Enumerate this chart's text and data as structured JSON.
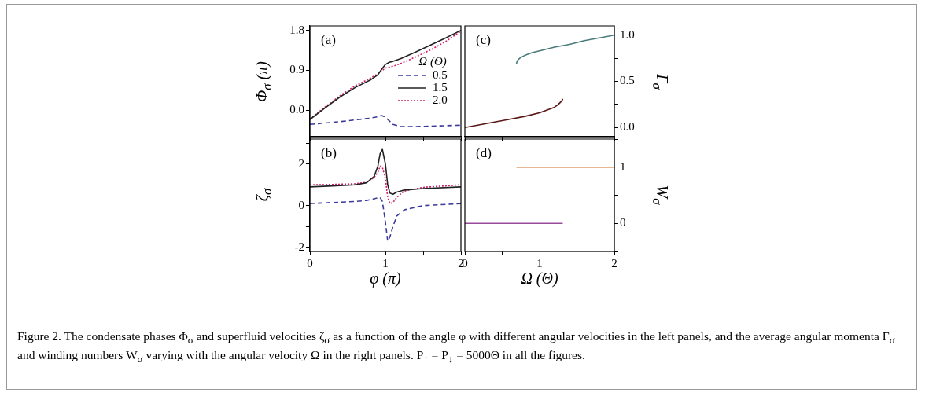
{
  "chart_data": [
    {
      "type": "line",
      "ylabel": "Φ$_{σ}$ (π)",
      "legend_title": "Ω (Θ)",
      "legend": "right",
      "tick_labels": "y",
      "annotations": [
        "(a)",
        "Figure 2. The condensate phases Φ$_{σ}$ and superfluid velocities ζ$_{σ}$ as a function of the angle φ with different angular velocities in the left panels, and the average angular momenta Γ$_{σ}$ and winding numbers W$_{σ}$ varying with the angular velocity Ω in the right panels. P$_{↑}$ = P$_{↓}$ = 5000Θ in all the figures."
      ],
      "xlim": [
        0,
        2
      ],
      "xticks": [
        {
          "value": 0,
          "label": null
        },
        {
          "value": 0.5,
          "label": null
        },
        {
          "value": 1,
          "label": null
        },
        {
          "value": 1.5,
          "label": null
        },
        {
          "value": 2,
          "label": null
        }
      ],
      "ylim": [
        -0.6,
        1.9
      ],
      "yticks": [
        {
          "value": 0,
          "label": "0.0"
        },
        {
          "value": 0.9,
          "label": "0.9"
        },
        {
          "value": 1.8,
          "label": "1.8"
        }
      ],
      "series": [
        {
          "name": "0.5",
          "color": "#3a3a9a",
          "line_style": "dashed",
          "x": [
            0,
            0.2,
            0.4,
            0.6,
            0.8,
            0.9,
            0.95,
            1.0,
            1.05,
            1.1,
            1.2,
            1.4,
            1.6,
            1.8,
            2.0
          ],
          "values": [
            -0.32,
            -0.29,
            -0.26,
            -0.22,
            -0.18,
            -0.15,
            -0.12,
            -0.16,
            -0.24,
            -0.32,
            -0.37,
            -0.37,
            -0.36,
            -0.35,
            -0.34
          ]
        },
        {
          "name": "1.5",
          "color": "#222222",
          "line_style": "solid",
          "x": [
            0,
            0.2,
            0.4,
            0.6,
            0.8,
            0.9,
            0.95,
            1.0,
            1.05,
            1.1,
            1.2,
            1.4,
            1.6,
            1.8,
            2.0
          ],
          "values": [
            -0.21,
            0.05,
            0.3,
            0.51,
            0.68,
            0.8,
            0.92,
            1.03,
            1.08,
            1.1,
            1.16,
            1.31,
            1.47,
            1.63,
            1.8
          ]
        },
        {
          "name": "2.0",
          "color": "#d0206a",
          "line_style": "dotted",
          "x": [
            0,
            0.2,
            0.4,
            0.6,
            0.8,
            0.9,
            0.95,
            1.0,
            1.05,
            1.1,
            1.2,
            1.4,
            1.6,
            1.8,
            2.0
          ],
          "values": [
            -0.2,
            0.07,
            0.33,
            0.55,
            0.72,
            0.82,
            0.88,
            0.95,
            0.97,
            0.99,
            1.05,
            1.2,
            1.36,
            1.55,
            1.78
          ]
        }
      ]
    },
    {
      "type": "line",
      "xlabel": "φ (π)",
      "ylabel": "ζ$_{σ}$",
      "annotations": [
        "(b)"
      ],
      "xlim": [
        0,
        2
      ],
      "xticks": [
        {
          "value": 0,
          "label": "0"
        },
        {
          "value": 0.5,
          "label": null
        },
        {
          "value": 1,
          "label": "1"
        },
        {
          "value": 1.5,
          "label": null
        },
        {
          "value": 2,
          "label": "2"
        }
      ],
      "ylim": [
        -2.2,
        3.2
      ],
      "yticks": [
        {
          "value": -2,
          "label": "-2"
        },
        {
          "value": -1,
          "label": null
        },
        {
          "value": 0,
          "label": "0"
        },
        {
          "value": 1,
          "label": null
        },
        {
          "value": 2,
          "label": "2"
        },
        {
          "value": 3,
          "label": null
        }
      ],
      "series": [
        {
          "color": "#3a3a9a",
          "line_style": "dashed",
          "x": [
            0,
            0.3,
            0.6,
            0.75,
            0.85,
            0.9,
            0.93,
            0.96,
            1.0,
            1.03,
            1.06,
            1.1,
            1.15,
            1.25,
            1.5,
            2.0
          ],
          "values": [
            0.1,
            0.15,
            0.2,
            0.25,
            0.33,
            0.38,
            0.4,
            0.2,
            -0.8,
            -1.7,
            -1.5,
            -1.0,
            -0.5,
            -0.2,
            0.0,
            0.1
          ]
        },
        {
          "color": "#222222",
          "line_style": "solid",
          "x": [
            0,
            0.3,
            0.6,
            0.75,
            0.85,
            0.9,
            0.93,
            0.96,
            1.0,
            1.03,
            1.06,
            1.1,
            1.15,
            1.25,
            1.5,
            2.0
          ],
          "values": [
            0.9,
            0.95,
            1.0,
            1.1,
            1.4,
            1.9,
            2.5,
            2.7,
            2.0,
            1.0,
            0.6,
            0.55,
            0.65,
            0.75,
            0.82,
            0.9
          ]
        },
        {
          "color": "#d0206a",
          "line_style": "dotted",
          "x": [
            0,
            0.3,
            0.6,
            0.75,
            0.85,
            0.9,
            0.93,
            0.96,
            1.0,
            1.03,
            1.06,
            1.1,
            1.15,
            1.25,
            1.5,
            2.0
          ],
          "values": [
            1.0,
            1.02,
            1.05,
            1.12,
            1.35,
            1.6,
            1.9,
            1.85,
            1.3,
            0.4,
            0.1,
            0.15,
            0.4,
            0.7,
            0.88,
            1.0
          ]
        }
      ]
    },
    {
      "type": "line",
      "ylabel": "Γ$_{σ}$",
      "annotations": [
        "(c)"
      ],
      "tick_labels": "y",
      "xlim": [
        0,
        2
      ],
      "xticks": [
        {
          "value": 0,
          "label": null
        },
        {
          "value": 0.5,
          "label": null
        },
        {
          "value": 1,
          "label": null
        },
        {
          "value": 1.5,
          "label": null
        },
        {
          "value": 2,
          "label": null
        }
      ],
      "ylim": [
        -0.1,
        1.1
      ],
      "yticks": [
        {
          "value": 0,
          "label": "0.0"
        },
        {
          "value": 0.25,
          "label": null
        },
        {
          "value": 0.5,
          "label": "0.5"
        },
        {
          "value": 0.75,
          "label": null
        },
        {
          "value": 1,
          "label": "1.0"
        }
      ],
      "series": [
        {
          "color": "#4a7a7a",
          "x": [
            0.69,
            0.7,
            0.72,
            0.75,
            0.8,
            0.9,
            1.0,
            1.2,
            1.4,
            1.6,
            1.8,
            2.0
          ],
          "values": [
            0.69,
            0.72,
            0.74,
            0.76,
            0.78,
            0.81,
            0.83,
            0.87,
            0.9,
            0.94,
            0.97,
            1.0
          ]
        },
        {
          "color": "#5a1515",
          "x": [
            0,
            0.2,
            0.4,
            0.6,
            0.8,
            1.0,
            1.1,
            1.2,
            1.25,
            1.3,
            1.31
          ],
          "values": [
            0.0,
            0.03,
            0.06,
            0.09,
            0.12,
            0.16,
            0.19,
            0.22,
            0.25,
            0.29,
            0.31
          ]
        }
      ]
    },
    {
      "type": "line",
      "xlabel": "Ω (Θ)",
      "ylabel": "W$_{σ}$",
      "annotations": [
        "(d)"
      ],
      "xlim": [
        0,
        2
      ],
      "xticks": [
        {
          "value": 0,
          "label": "0"
        },
        {
          "value": 0.5,
          "label": null
        },
        {
          "value": 1,
          "label": "1"
        },
        {
          "value": 1.5,
          "label": null
        },
        {
          "value": 2,
          "label": "2"
        }
      ],
      "ylim": [
        -0.5,
        1.5
      ],
      "yticks": [
        {
          "value": -0.5,
          "label": null
        },
        {
          "value": 0,
          "label": "0"
        },
        {
          "value": 0.5,
          "label": null
        },
        {
          "value": 1,
          "label": "1"
        },
        {
          "value": 1.5,
          "label": null
        }
      ],
      "series": [
        {
          "color": "#d07028",
          "x": [
            0.69,
            2.0
          ],
          "values": [
            1,
            1
          ]
        },
        {
          "color": "#9a4a9a",
          "x": [
            0,
            1.31
          ],
          "values": [
            0,
            0
          ]
        }
      ]
    }
  ]
}
